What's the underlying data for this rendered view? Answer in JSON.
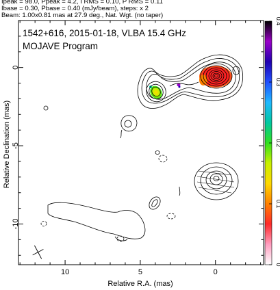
{
  "header": {
    "line1": "Ipeak = 98.0, Ppeak = 4.2, I RMS = 0.10, P RMS = 0.11",
    "line2": "Ibase = 0.30, Pbase = 0.40 (mJy/beam), steps: x 2",
    "line3": "Beam: 1.00x0.81 mas at 27.9 deg., Nat. Wgt. (no taper)"
  },
  "panel": {
    "title": "1542+616, 2015-01-18, VLBA 15.4 GHz",
    "subtitle": "MOJAVE Program"
  },
  "colors": {
    "contour": "#000000",
    "frame": "#000000"
  },
  "chart_data": {
    "type": "contour",
    "xlabel": "Relative R.A. (mas)",
    "ylabel": "Relative Declination (mas)",
    "xlim": [
      13.1,
      -3.2
    ],
    "ylim": [
      -12.6,
      3.0
    ],
    "xticks": [
      10,
      5,
      0
    ],
    "yticks": [
      0,
      -5,
      -10
    ],
    "colorbar": {
      "range": [
        0,
        0.4
      ],
      "ticks": [
        0,
        0.1,
        0.2,
        0.3,
        0.4
      ],
      "tick_labels": [
        "0",
        "0.1",
        "0.2",
        "0.3",
        "0.4"
      ],
      "colormap": [
        "#ffffff",
        "#ff9ec0",
        "#ff2a2a",
        "#ff8000",
        "#ffd800",
        "#c8f000",
        "#30e020",
        "#00c8a0",
        "#20b8ff",
        "#2050ff",
        "#2000b0",
        "#9a00c8",
        "#000000"
      ]
    },
    "total_intensity_peak_mJy_per_beam": 98.0,
    "polarized_peak_mJy_per_beam": 4.2,
    "contour_base_mJy_per_beam": 0.3,
    "contour_step_factor": 2,
    "features": [
      {
        "name": "core",
        "ra": 0.0,
        "dec": -0.1
      },
      {
        "name": "jet knot",
        "ra": 4.0,
        "dec": -1.1
      },
      {
        "name": "southern feature",
        "ra": 0.2,
        "dec": -7.0
      }
    ],
    "beam": {
      "major_mas": 1.0,
      "minor_mas": 0.81,
      "pa_deg": 27.9,
      "center_ra": 11.8,
      "center_dec": -11.8
    }
  }
}
